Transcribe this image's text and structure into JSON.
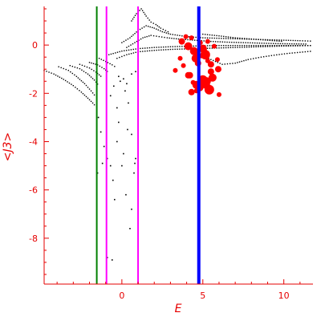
{
  "chart_data": {
    "type": "scatter",
    "title": "",
    "xlabel": "E",
    "ylabel": "<J3>",
    "xlim": [
      -4.8,
      11.8
    ],
    "ylim": [
      -9.9,
      1.6
    ],
    "x_ticks": [
      0,
      5,
      10
    ],
    "x_tick_labels": [
      "0",
      "5",
      "10"
    ],
    "y_ticks": [
      0,
      -2,
      -4,
      -6,
      -8
    ],
    "y_tick_labels": [
      "0",
      "-2",
      "-4",
      "-6",
      "-8"
    ],
    "grid": false,
    "legend": "none",
    "axis_color": "#e60000",
    "vertical_lines": [
      {
        "x": -1.55,
        "color": "#008000",
        "width": "thin"
      },
      {
        "x": -0.95,
        "color": "#ff00ff",
        "width": "thin"
      },
      {
        "x": 1.0,
        "color": "#ff00ff",
        "width": "thin"
      },
      {
        "x": 4.75,
        "color": "#0000ff",
        "width": "thick"
      }
    ],
    "series": [
      {
        "color": "#000000",
        "marker": "small dot",
        "branches": [
          {
            "x": [
              -4.8,
              -4.2,
              -3.6,
              -3.0,
              -2.5,
              -2.1,
              -1.8,
              -1.6
            ],
            "y": [
              -1.05,
              -1.2,
              -1.42,
              -1.68,
              -1.95,
              -2.2,
              -2.4,
              -2.55
            ]
          },
          {
            "x": [
              -3.9,
              -3.3,
              -2.8,
              -2.3,
              -1.9,
              -1.6
            ],
            "y": [
              -0.9,
              -1.05,
              -1.3,
              -1.6,
              -1.9,
              -2.15
            ]
          },
          {
            "x": [
              -3.2,
              -2.6,
              -2.1,
              -1.7,
              -1.4
            ],
            "y": [
              -0.85,
              -0.98,
              -1.2,
              -1.45,
              -1.7
            ]
          },
          {
            "x": [
              -2.6,
              -2.0,
              -1.6,
              -1.2
            ],
            "y": [
              -0.8,
              -0.95,
              -1.12,
              -1.35
            ]
          },
          {
            "x": [
              -2.0,
              -1.5,
              -1.1,
              -0.8
            ],
            "y": [
              -0.72,
              -0.82,
              -0.98,
              -1.15
            ]
          },
          {
            "x": [
              -1.4,
              -1.0,
              -0.6,
              -0.3
            ],
            "y": [
              -0.55,
              -0.68,
              -0.82,
              -0.95
            ]
          },
          {
            "x": [
              -0.8,
              0.0,
              1.0,
              2.0,
              3.0,
              4.0,
              5.0,
              6.0,
              7.0,
              8.0,
              9.0,
              10.0,
              11.0,
              11.8
            ],
            "y": [
              -0.4,
              -0.25,
              -0.15,
              -0.1,
              -0.07,
              -0.05,
              -0.03,
              -0.02,
              -0.02,
              -0.02,
              -0.02,
              -0.02,
              -0.02,
              -0.02
            ]
          },
          {
            "x": [
              -0.3,
              0.3,
              1.0,
              2.0,
              3.0,
              4.0,
              5.0,
              6.0,
              7.0,
              8.0,
              9.0,
              10.0,
              11.0,
              11.8
            ],
            "y": [
              -0.55,
              -0.4,
              -0.28,
              -0.22,
              -0.18,
              -0.16,
              -0.14,
              -0.12,
              -0.1,
              -0.08,
              -0.06,
              -0.04,
              -0.03,
              -0.02
            ]
          },
          {
            "x": [
              0.0,
              0.5,
              1.0,
              1.5,
              2.0,
              2.5,
              3.0,
              4.0,
              5.0,
              6.0,
              7.0,
              8.0,
              9.0,
              10.0,
              11.0,
              11.8
            ],
            "y": [
              0.1,
              0.3,
              0.6,
              0.8,
              0.7,
              0.55,
              0.45,
              0.35,
              0.3,
              0.28,
              0.26,
              0.24,
              0.22,
              0.2,
              0.18,
              0.16
            ]
          },
          {
            "x": [
              0.3,
              0.8,
              1.3,
              1.8,
              2.3,
              2.8,
              3.5,
              4.5,
              5.5,
              6.5,
              7.5,
              8.5,
              9.5,
              10.5,
              11.5
            ],
            "y": [
              -0.1,
              0.1,
              0.3,
              0.4,
              0.35,
              0.3,
              0.25,
              0.2,
              0.15,
              0.12,
              0.1,
              0.08,
              0.06,
              0.05,
              0.04
            ]
          },
          {
            "x": [
              4.8,
              5.5,
              6.2,
              7.0,
              7.8,
              8.6,
              9.4,
              10.2,
              11.0,
              11.8
            ],
            "y": [
              -0.4,
              -0.6,
              -0.8,
              -0.75,
              -0.6,
              -0.5,
              -0.42,
              -0.35,
              -0.3,
              -0.25
            ]
          },
          {
            "x": [
              0.6,
              0.9,
              1.2,
              1.5,
              1.8,
              2.1,
              2.4,
              2.7,
              3.0
            ],
            "y": [
              1.0,
              1.3,
              1.5,
              1.2,
              0.95,
              0.85,
              0.7,
              0.6,
              0.5
            ]
          },
          {
            "x": [
              5.0,
              6.0,
              7.0,
              8.0,
              9.0,
              10.0
            ],
            "y": [
              0.45,
              0.38,
              0.3,
              0.25,
              0.2,
              0.15
            ]
          }
        ],
        "scattered": {
          "x": [
            -1.45,
            -1.3,
            -1.1,
            -0.9,
            -0.7,
            -0.55,
            -0.45,
            -0.3,
            -0.2,
            0.0,
            0.1,
            0.25,
            0.35,
            0.5,
            0.6,
            0.75,
            0.85,
            -1.5,
            -1.2,
            -0.9,
            -0.6,
            -0.3,
            -0.1,
            0.2,
            0.4,
            0.6,
            0.8,
            -0.7,
            -0.5,
            -0.2,
            0.1,
            0.3,
            0.6,
            0.85
          ],
          "y": [
            -3.0,
            -3.6,
            -4.2,
            -4.7,
            -5.0,
            -5.6,
            -6.4,
            -4.0,
            -3.2,
            -5.0,
            -4.5,
            -6.2,
            -3.5,
            -7.6,
            -6.8,
            -5.3,
            -4.7,
            -5.3,
            -4.9,
            -8.8,
            -8.9,
            -2.6,
            -1.5,
            -1.9,
            -2.4,
            -3.7,
            -4.9,
            -2.1,
            -1.7,
            -1.3,
            -1.4,
            -1.6,
            -1.2,
            -1.1
          ]
        }
      },
      {
        "color": "#ff0000",
        "marker": "filled circle, size varies",
        "x": [
          3.7,
          3.95,
          4.1,
          4.3,
          4.45,
          4.55,
          4.7,
          4.85,
          5.0,
          5.15,
          5.3,
          5.5,
          5.7,
          5.95,
          4.2,
          4.6,
          5.0,
          5.4,
          3.6,
          3.8,
          4.1,
          4.4,
          4.8,
          5.2,
          5.6,
          6.0,
          4.3,
          4.6,
          4.9,
          5.1,
          5.3,
          5.5,
          5.9,
          3.3,
          5.0,
          5.25,
          4.6
        ],
        "y": [
          0.15,
          0.35,
          -0.05,
          0.3,
          -0.25,
          -0.55,
          -0.75,
          0.1,
          -0.15,
          -0.4,
          0.15,
          -0.8,
          -0.05,
          -1.0,
          -1.25,
          -1.65,
          -1.45,
          -1.85,
          -0.55,
          -0.85,
          -1.25,
          -1.55,
          -1.75,
          -1.65,
          -1.35,
          -2.05,
          -1.95,
          -0.3,
          -0.45,
          -0.2,
          -0.65,
          -1.1,
          -0.6,
          -1.05,
          -1.4,
          -1.5,
          -1.9
        ],
        "sizes": [
          4,
          3,
          5,
          3,
          5,
          5,
          4,
          3,
          5,
          6,
          3,
          4,
          3,
          4,
          4,
          5,
          6,
          6,
          3,
          3,
          4,
          3,
          5,
          5,
          5,
          3,
          4,
          4,
          3,
          3,
          3,
          4,
          3,
          3,
          4,
          5,
          3
        ]
      }
    ]
  }
}
